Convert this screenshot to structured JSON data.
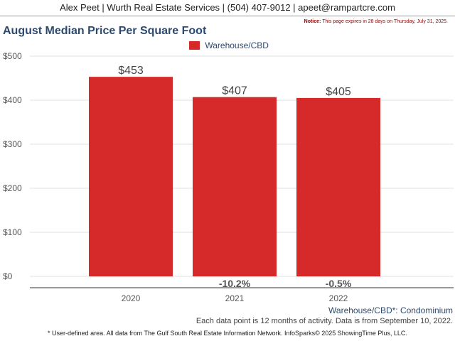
{
  "header": {
    "contact": "Alex Peet | Wurth Real Estate Services | (504) 407-9012 | apeet@rampartcre.com"
  },
  "notice": {
    "label": "Notice:",
    "text": "This page expires in 28 days on Thursday, July 31, 2025."
  },
  "footer": {
    "area_note": "Warehouse/CBD*: Condominium",
    "data_note": "Each data point is 12 months of activity. Data is from September 10, 2022.",
    "source": "* User-defined area. All data from The Gulf South Real Estate Information Network. InfoSparks© 2025 ShowingTime Plus, LLC."
  },
  "colors": {
    "bar": "#d62a2a",
    "title": "#2c4a6e",
    "change_label": "#555555"
  },
  "chart_data": {
    "type": "bar",
    "title": "August Median Price Per Square Foot",
    "categories": [
      "2020",
      "2021",
      "2022"
    ],
    "series": [
      {
        "name": "Warehouse/CBD",
        "values": [
          453,
          407,
          405
        ],
        "value_labels": [
          "$453",
          "$407",
          "$405"
        ]
      }
    ],
    "change_labels": [
      "",
      "-10.2%",
      "-0.5%"
    ],
    "ylim": [
      0,
      500
    ],
    "yticks": [
      0,
      100,
      200,
      300,
      400,
      500
    ],
    "ytick_labels": [
      "$0",
      "$100",
      "$200",
      "$300",
      "$400",
      "$500"
    ],
    "grid": true,
    "legend": "top-center"
  }
}
